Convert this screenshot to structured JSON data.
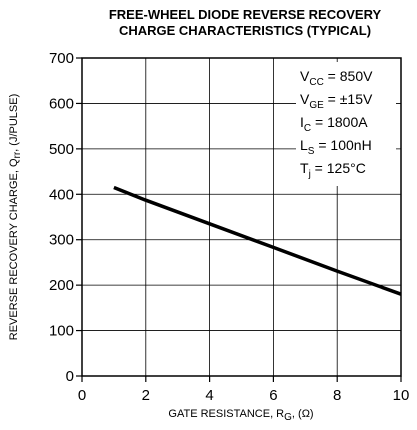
{
  "chart_data": {
    "type": "line",
    "title_lines": [
      "FREE-WHEEL DIODE REVERSE RECOVERY",
      "CHARGE CHARACTERISTICS (TYPICAL)"
    ],
    "xlabel": {
      "main": "GATE RESISTANCE, R",
      "sub": "G",
      "tail": ", (Ω)"
    },
    "ylabel": {
      "main": "REVERSE RECOVERY CHARGE, Q",
      "sub": "rr",
      "tail": ", (J/PULSE)"
    },
    "xlim": [
      0,
      10
    ],
    "ylim": [
      0,
      700
    ],
    "x_ticks": [
      "0",
      "2",
      "4",
      "6",
      "8",
      "10"
    ],
    "y_ticks": [
      "0",
      "100",
      "200",
      "300",
      "400",
      "500",
      "600",
      "700"
    ],
    "grid": true,
    "series": [
      {
        "x": [
          1,
          2,
          4,
          6,
          8,
          10
        ],
        "y": [
          415,
          387,
          335,
          283,
          231,
          180
        ]
      }
    ],
    "conditions": [
      {
        "main": "V",
        "sub": "CC",
        "tail": " = 850V"
      },
      {
        "main": "V",
        "sub": "GE",
        "tail": " = ±15V"
      },
      {
        "main": "I",
        "sub": "C",
        "tail": " = 1800A"
      },
      {
        "main": "L",
        "sub": "S",
        "tail": " = 100nH"
      },
      {
        "main": "T",
        "sub": "j",
        "tail": " = 125°C"
      }
    ]
  }
}
